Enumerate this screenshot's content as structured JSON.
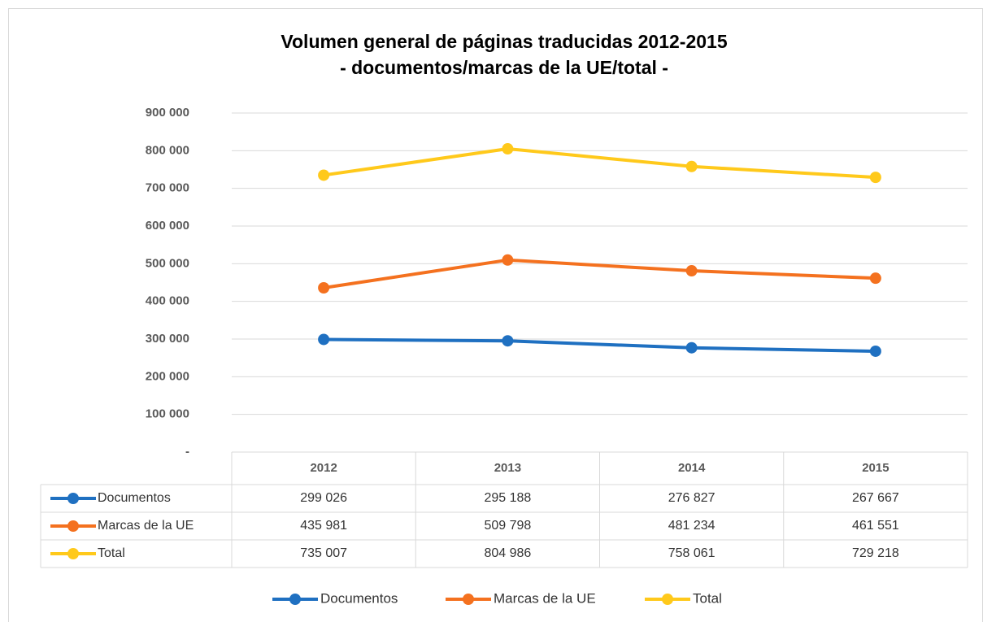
{
  "chart_data": {
    "type": "line",
    "title": "Volumen general de páginas traducidas 2012-2015",
    "subtitle": "- documentos/marcas de la UE/total -",
    "categories": [
      "2012",
      "2013",
      "2014",
      "2015"
    ],
    "series": [
      {
        "name": "Documentos",
        "color": "#1f70c1",
        "values": [
          299026,
          295188,
          276827,
          267667
        ],
        "value_labels": [
          "299 026",
          "295 188",
          "276 827",
          "267 667"
        ]
      },
      {
        "name": "Marcas de la UE",
        "color": "#f4711f",
        "values": [
          435981,
          509798,
          481234,
          461551
        ],
        "value_labels": [
          "435 981",
          "509 798",
          "481 234",
          "461 551"
        ]
      },
      {
        "name": "Total",
        "color": "#ffc91b",
        "values": [
          735007,
          804986,
          758061,
          729218
        ],
        "value_labels": [
          "735 007",
          "804 986",
          "758 061",
          "729 218"
        ]
      }
    ],
    "ylim": [
      0,
      900000
    ],
    "yticks": [
      {
        "value": 0,
        "label": "-"
      },
      {
        "value": 100000,
        "label": "100 000"
      },
      {
        "value": 200000,
        "label": "200 000"
      },
      {
        "value": 300000,
        "label": "300 000"
      },
      {
        "value": 400000,
        "label": "400 000"
      },
      {
        "value": 500000,
        "label": "500 000"
      },
      {
        "value": 600000,
        "label": "600 000"
      },
      {
        "value": 700000,
        "label": "700 000"
      },
      {
        "value": 800000,
        "label": "800 000"
      },
      {
        "value": 900000,
        "label": "900 000"
      }
    ],
    "grid": true,
    "legend": "bottom"
  }
}
